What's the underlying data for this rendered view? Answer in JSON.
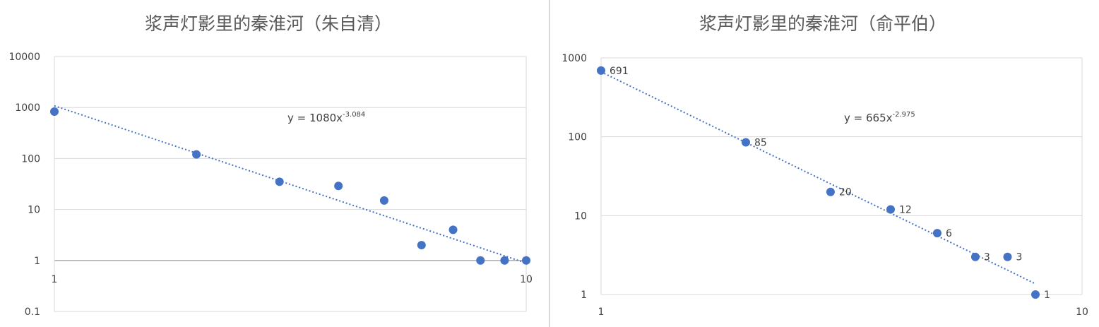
{
  "chart_data": [
    {
      "type": "scatter",
      "title": "浆声灯影里的秦淮河（朱自清）",
      "x_scale": "log",
      "y_scale": "log",
      "xlim": [
        1,
        10
      ],
      "ylim": [
        0.1,
        10000
      ],
      "x_ticks": [
        "1",
        "10"
      ],
      "y_ticks": [
        "0.1",
        "1",
        "10",
        "100",
        "1000",
        "10000"
      ],
      "grid": "horizontal",
      "series": [
        {
          "x": [
            1,
            2,
            3,
            4,
            5,
            6,
            7,
            8,
            9,
            10
          ],
          "y": [
            830,
            120,
            35,
            29,
            15,
            2,
            4,
            1,
            1,
            1
          ],
          "color": "#4472c4"
        }
      ],
      "trendline": {
        "type": "power",
        "a": 1080,
        "b": -3.084,
        "equation_base": "y = 1080x",
        "equation_exp": "-3.084"
      }
    },
    {
      "type": "scatter",
      "title": "浆声灯影里的秦淮河（俞平伯）",
      "x_scale": "log",
      "y_scale": "log",
      "xlim": [
        1,
        10
      ],
      "ylim": [
        1,
        1000
      ],
      "x_ticks": [
        "1",
        "10"
      ],
      "y_ticks": [
        "1",
        "10",
        "100",
        "1000"
      ],
      "grid": "horizontal",
      "series": [
        {
          "x": [
            1,
            2,
            3,
            4,
            5,
            6,
            7,
            8
          ],
          "y": [
            691,
            85,
            20,
            12,
            6,
            3,
            3,
            1
          ],
          "labels": [
            "691",
            "85",
            "20",
            "12",
            "6",
            "3",
            "3",
            "1"
          ],
          "color": "#4472c4"
        }
      ],
      "trendline": {
        "type": "power",
        "a": 665,
        "b": -2.975,
        "equation_base": "y = 665x",
        "equation_exp": "-2.975"
      }
    }
  ]
}
